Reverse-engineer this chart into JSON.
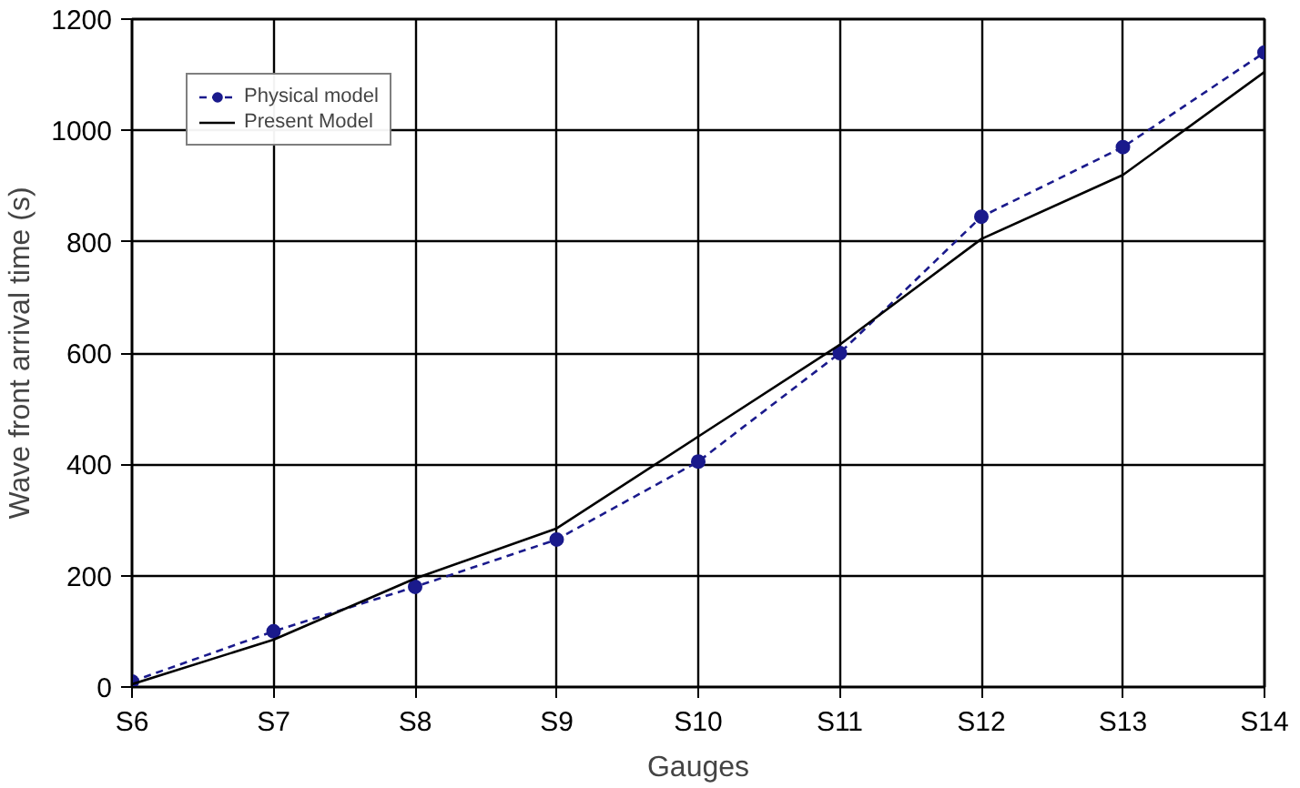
{
  "chart_data": {
    "type": "line",
    "xlabel": "Gauges",
    "ylabel": "Wave front arrival time (s)",
    "categories": [
      "S6",
      "S7",
      "S8",
      "S9",
      "S10",
      "S11",
      "S12",
      "S13",
      "S14"
    ],
    "ylim": [
      0,
      1200
    ],
    "yticks": [
      0,
      200,
      400,
      600,
      800,
      1000,
      1200
    ],
    "grid": true,
    "legend": "top left",
    "series": [
      {
        "name": "Physical model",
        "color": "#1a1a8c",
        "marker": "circle",
        "line_style": "dashed",
        "values": [
          10,
          100,
          180,
          265,
          405,
          600,
          845,
          970,
          1140
        ]
      },
      {
        "name": "Present Model",
        "color": "#000000",
        "marker": "none",
        "line_style": "solid",
        "values": [
          5,
          85,
          195,
          285,
          450,
          615,
          805,
          920,
          1105
        ]
      }
    ]
  }
}
